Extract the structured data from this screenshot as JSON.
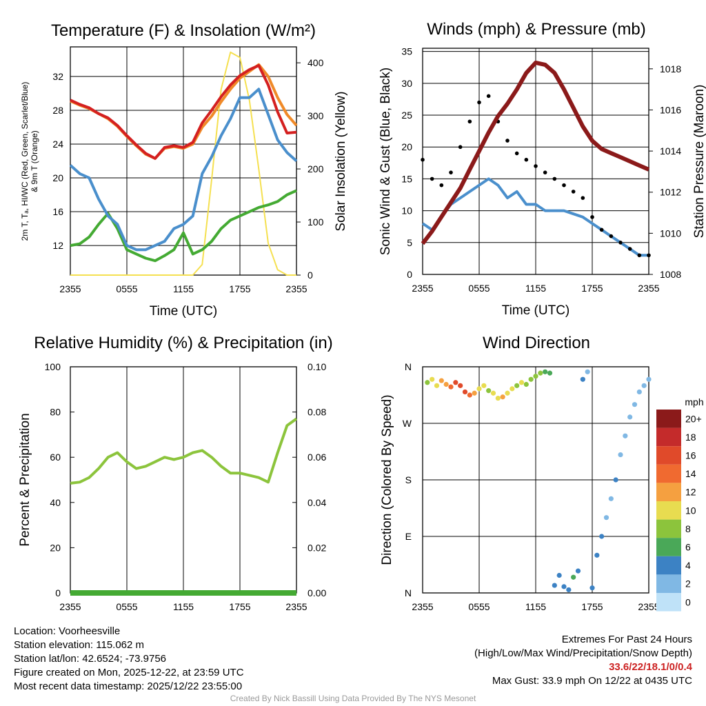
{
  "chart_data": [
    {
      "id": "temp",
      "type": "line",
      "title": "Temperature (F) & Insolation (W/m²)",
      "xlabel": "Time (UTC)",
      "ylabel": "2m T, Tₐ, HI/WC (Red, Green, Scarlet/Blue) & 9m T (Orange)",
      "y2label": "Solar Insolation (Yellow)",
      "xticks": [
        "2355",
        "0555",
        "1155",
        "1755",
        "2355"
      ],
      "yticks": [
        "12",
        "16",
        "20",
        "24",
        "28",
        "32"
      ],
      "y2ticks": [
        "0",
        "100",
        "200",
        "300",
        "400"
      ],
      "x": [
        0,
        1,
        2,
        3,
        4,
        5,
        6,
        7,
        8,
        9,
        10,
        11,
        12,
        13,
        14,
        15,
        16,
        17,
        18,
        19,
        20,
        21,
        22,
        23,
        24
      ],
      "ylim": [
        8.5,
        35.5
      ],
      "y2lim": [
        0,
        430
      ],
      "series": [
        {
          "name": "2m Temperature",
          "color": "#d42020",
          "values": [
            29.2,
            28.7,
            28.3,
            27.6,
            27.1,
            26.2,
            25.0,
            23.9,
            22.9,
            22.3,
            23.6,
            23.8,
            23.6,
            24.2,
            26.5,
            28.0,
            29.6,
            31.0,
            32.1,
            32.8,
            33.3,
            31.0,
            27.8,
            25.3,
            25.4
          ]
        },
        {
          "name": "9m Temperature",
          "color": "#f08a28",
          "values": [
            29.1,
            28.6,
            28.2,
            27.6,
            27.0,
            26.1,
            24.9,
            23.8,
            22.8,
            22.3,
            23.5,
            23.7,
            23.5,
            24.0,
            26.0,
            27.3,
            29.0,
            30.5,
            31.8,
            32.6,
            33.4,
            32.0,
            29.5,
            27.5,
            26.2
          ]
        },
        {
          "name": "Dewpoint",
          "color": "#44aa33",
          "values": [
            12.0,
            12.2,
            13.0,
            14.5,
            15.8,
            14.0,
            11.5,
            11.0,
            10.5,
            10.2,
            10.8,
            11.5,
            13.5,
            11.0,
            11.5,
            12.5,
            14.0,
            15.0,
            15.5,
            16.0,
            16.5,
            16.8,
            17.2,
            18.0,
            18.5
          ]
        },
        {
          "name": "Wind Chill",
          "color": "#4a8fcc",
          "values": [
            21.5,
            20.5,
            20.0,
            17.5,
            15.5,
            14.5,
            12.0,
            11.5,
            11.5,
            12.0,
            12.5,
            14.0,
            14.5,
            15.5,
            20.5,
            22.5,
            25.0,
            27.0,
            29.5,
            29.5,
            30.5,
            27.5,
            24.5,
            23.0,
            22.0
          ]
        },
        {
          "name": "Solar Insolation",
          "color": "#f5e050",
          "axis": "y2",
          "values": [
            0,
            0,
            0,
            0,
            0,
            0,
            0,
            0,
            0,
            0,
            0,
            0,
            0,
            0,
            20,
            180,
            350,
            420,
            410,
            330,
            200,
            60,
            10,
            0,
            0
          ]
        }
      ]
    },
    {
      "id": "wind",
      "type": "line",
      "title": "Winds (mph) & Pressure (mb)",
      "xlabel": "Time (UTC)",
      "ylabel": "Sonic Wind & Gust (Blue, Black)",
      "y2label": "Station Pressure (Maroon)",
      "xticks": [
        "2355",
        "0555",
        "1155",
        "1755",
        "2355"
      ],
      "yticks": [
        "0",
        "5",
        "10",
        "15",
        "20",
        "25",
        "30",
        "35"
      ],
      "y2ticks": [
        "1008",
        "1010",
        "1012",
        "1014",
        "1016",
        "1018"
      ],
      "x": [
        0,
        1,
        2,
        3,
        4,
        5,
        6,
        7,
        8,
        9,
        10,
        11,
        12,
        13,
        14,
        15,
        16,
        17,
        18,
        19,
        20,
        21,
        22,
        23,
        24
      ],
      "ylim": [
        0,
        35.5
      ],
      "y2lim": [
        1008,
        1019
      ],
      "series": [
        {
          "name": "Sonic Wind",
          "color": "#4a8fcc",
          "values": [
            8,
            7,
            9,
            11,
            12,
            13,
            14,
            15,
            14,
            12,
            13,
            11,
            11,
            10,
            10,
            10,
            9.5,
            9,
            8,
            7,
            6,
            5,
            4,
            3,
            3
          ]
        },
        {
          "name": "Gust",
          "color": "#000000",
          "type": "scatter",
          "values": [
            18,
            15,
            14,
            16,
            20,
            24,
            27,
            28,
            24,
            21,
            19,
            18,
            17,
            16,
            15,
            14,
            13,
            12,
            9,
            7,
            6,
            5,
            4,
            3,
            3
          ]
        },
        {
          "name": "Station Pressure",
          "color": "#8b1a1a",
          "axis": "y2",
          "values": [
            1009.5,
            1010.1,
            1010.8,
            1011.5,
            1012.2,
            1013.1,
            1014.0,
            1014.9,
            1015.7,
            1016.3,
            1017.0,
            1017.8,
            1018.3,
            1018.2,
            1017.8,
            1017.0,
            1016.1,
            1015.2,
            1014.5,
            1014.1,
            1013.9,
            1013.7,
            1013.5,
            1013.3,
            1013.1
          ]
        }
      ]
    },
    {
      "id": "rh",
      "type": "line",
      "title": "Relative Humidity (%) & Precipitation (in)",
      "ylabel": "Percent & Precipitation",
      "xticks": [
        "2355",
        "0555",
        "1155",
        "1755",
        "2355"
      ],
      "yticks": [
        "0",
        "20",
        "40",
        "60",
        "80",
        "100"
      ],
      "y2ticks": [
        "0.00",
        "0.02",
        "0.04",
        "0.06",
        "0.08",
        "0.10"
      ],
      "x": [
        0,
        1,
        2,
        3,
        4,
        5,
        6,
        7,
        8,
        9,
        10,
        11,
        12,
        13,
        14,
        15,
        16,
        17,
        18,
        19,
        20,
        21,
        22,
        23,
        24
      ],
      "ylim": [
        0,
        100
      ],
      "y2lim": [
        0,
        0.1
      ],
      "series": [
        {
          "name": "Relative Humidity",
          "color": "#8cc43c",
          "values": [
            48.5,
            49,
            51,
            55,
            60,
            62,
            58,
            55,
            56,
            58,
            60,
            59,
            60,
            62,
            63,
            60,
            56,
            53,
            53,
            52,
            51,
            49,
            62,
            74,
            77
          ]
        },
        {
          "name": "Precipitation",
          "color": "#44aa33",
          "axis": "y2",
          "values": [
            0,
            0,
            0,
            0,
            0,
            0,
            0,
            0,
            0,
            0,
            0,
            0,
            0,
            0,
            0,
            0,
            0,
            0,
            0,
            0,
            0,
            0,
            0,
            0,
            0
          ]
        }
      ]
    },
    {
      "id": "dir",
      "type": "scatter",
      "title": "Wind Direction",
      "ylabel": "Direction (Colored By Speed)",
      "xticks": [
        "2355",
        "0555",
        "1155",
        "1755",
        "2355"
      ],
      "yticks": [
        "N",
        "E",
        "S",
        "W",
        "N"
      ],
      "ylim": [
        0,
        360
      ],
      "colorbar_title": "mph",
      "colorbar_labels": [
        "20+",
        "18",
        "16",
        "14",
        "12",
        "10",
        "8",
        "6",
        "4",
        "2",
        "0"
      ],
      "colorbar_colors": [
        "#8b1a1a",
        "#c42b2b",
        "#e04a2a",
        "#f06a30",
        "#f5a040",
        "#e8dc50",
        "#8cc43c",
        "#4aa858",
        "#3c82c4",
        "#80b8e4",
        "#bfe2f8"
      ],
      "x": [
        0.5,
        1,
        1.5,
        2,
        2.5,
        3,
        3.5,
        4,
        4.5,
        5,
        5.5,
        6,
        6.5,
        7,
        7.5,
        8,
        8.5,
        9,
        9.5,
        10,
        10.5,
        11,
        11.5,
        12,
        12.5,
        13,
        13.5,
        14,
        14.5,
        15,
        15.5,
        16,
        16.5,
        17,
        17.5,
        18,
        18.5,
        19,
        19.5,
        20,
        20.5,
        21,
        21.5,
        22,
        22.5,
        23,
        23.5,
        24
      ],
      "values": [
        335,
        340,
        330,
        338,
        332,
        328,
        335,
        330,
        320,
        315,
        318,
        325,
        330,
        322,
        318,
        310,
        312,
        318,
        325,
        330,
        335,
        332,
        340,
        345,
        350,
        352,
        350,
        12,
        28,
        10,
        5,
        25,
        35,
        340,
        352,
        8,
        60,
        90,
        120,
        150,
        180,
        220,
        250,
        280,
        300,
        320,
        330,
        340
      ],
      "speeds": [
        8,
        9,
        10,
        11,
        12,
        14,
        16,
        15,
        16,
        13,
        12,
        10,
        9,
        8,
        9,
        10,
        11,
        10,
        9,
        8,
        9,
        8,
        7,
        8,
        7,
        6,
        5,
        4,
        4,
        3,
        4,
        5,
        4,
        3,
        2,
        3,
        4,
        3,
        2,
        2,
        3,
        2,
        1,
        1,
        2,
        1,
        2,
        1
      ]
    }
  ],
  "info": {
    "location": "Location: Voorheesville",
    "elevation": "Station elevation: 115.062 m",
    "latlon": "Station lat/lon: 42.6524; -73.9756",
    "created": "Figure created on Mon, 2025-12-22, at 23:59 UTC",
    "recent": "Most recent data timestamp: 2025/12/22 23:55:00"
  },
  "extremes": {
    "title": "Extremes For Past 24 Hours",
    "subtitle": "(High/Low/Max Wind/Precipitation/Snow Depth)",
    "values": "33.6/22/18.1/0/0.4",
    "max_gust": "Max Gust: 33.9 mph On 12/22 at 0435 UTC"
  },
  "credit": "Created By Nick Bassill Using Data Provided By The NYS Mesonet"
}
